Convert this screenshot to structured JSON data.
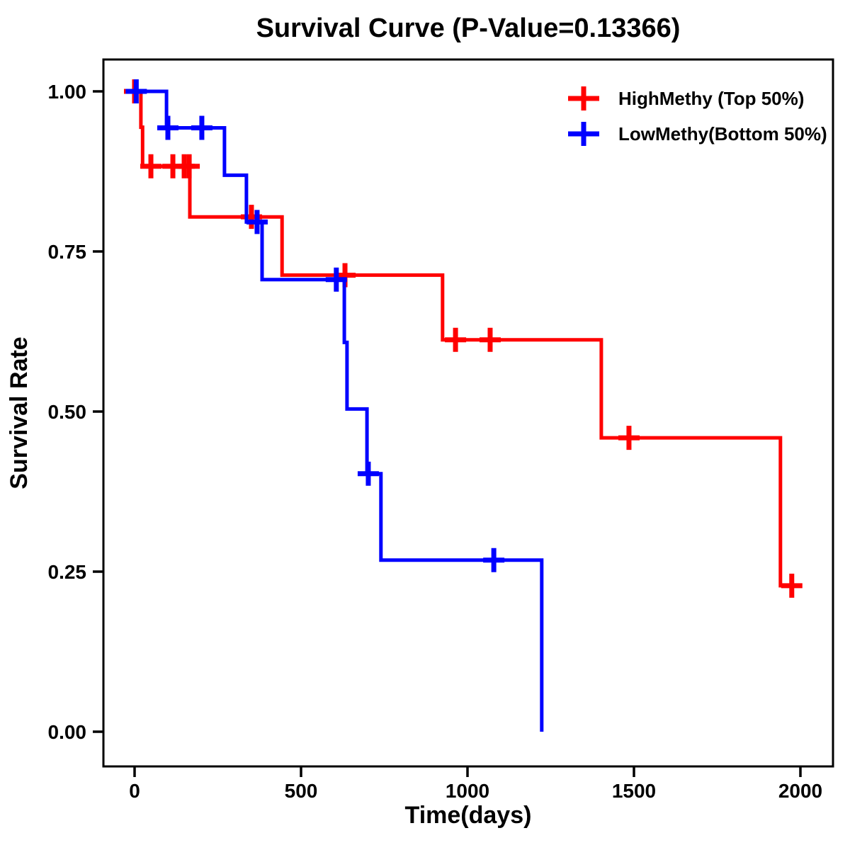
{
  "chart_data": {
    "type": "line",
    "subtype": "kaplan-meier-step",
    "title": "Survival Curve (P-Value=0.13366)",
    "p_value": "0.13366",
    "xlabel": "Time(days)",
    "ylabel": "Survival Rate",
    "x_ticks": [
      "0",
      "500",
      "1000",
      "1500",
      "2000"
    ],
    "y_ticks": [
      "0.00",
      "0.25",
      "0.50",
      "0.75",
      "1.00"
    ],
    "xlim": [
      -96,
      2100
    ],
    "ylim": [
      -0.055,
      1.055
    ],
    "grid": false,
    "legend_position": "top-right-inside",
    "axis_color": "#000000",
    "series": [
      {
        "name": "HighMethy (Top 50%)",
        "color": "#ff0000",
        "steps": [
          [
            0,
            1.0
          ],
          [
            19,
            1.0
          ],
          [
            19,
            0.944
          ],
          [
            24,
            0.944
          ],
          [
            24,
            0.883
          ],
          [
            166,
            0.883
          ],
          [
            166,
            0.804
          ],
          [
            443,
            0.804
          ],
          [
            443,
            0.713
          ],
          [
            925,
            0.713
          ],
          [
            925,
            0.612
          ],
          [
            1402,
            0.612
          ],
          [
            1402,
            0.459
          ],
          [
            1940,
            0.459
          ],
          [
            1940,
            0.228
          ],
          [
            1978,
            0.228
          ]
        ],
        "censors": [
          [
            0,
            1.0
          ],
          [
            49,
            0.883
          ],
          [
            115,
            0.883
          ],
          [
            149,
            0.883
          ],
          [
            164,
            0.883
          ],
          [
            351,
            0.804
          ],
          [
            632,
            0.713
          ],
          [
            964,
            0.612
          ],
          [
            1068,
            0.612
          ],
          [
            1485,
            0.459
          ],
          [
            1974,
            0.228
          ]
        ]
      },
      {
        "name": "LowMethy(Bottom 50%)",
        "color": "#0000ff",
        "steps": [
          [
            0,
            1.0
          ],
          [
            96,
            1.0
          ],
          [
            96,
            0.943
          ],
          [
            270,
            0.943
          ],
          [
            270,
            0.869
          ],
          [
            336,
            0.869
          ],
          [
            336,
            0.796
          ],
          [
            383,
            0.796
          ],
          [
            383,
            0.706
          ],
          [
            630,
            0.706
          ],
          [
            630,
            0.608
          ],
          [
            638,
            0.608
          ],
          [
            638,
            0.504
          ],
          [
            698,
            0.504
          ],
          [
            698,
            0.403
          ],
          [
            740,
            0.403
          ],
          [
            740,
            0.268
          ],
          [
            1223,
            0.268
          ],
          [
            1223,
            0.0
          ]
        ],
        "censors": [
          [
            5,
            1.0
          ],
          [
            100,
            0.943
          ],
          [
            202,
            0.943
          ],
          [
            368,
            0.796
          ],
          [
            606,
            0.706
          ],
          [
            702,
            0.403
          ],
          [
            1079,
            0.268
          ]
        ]
      }
    ]
  }
}
